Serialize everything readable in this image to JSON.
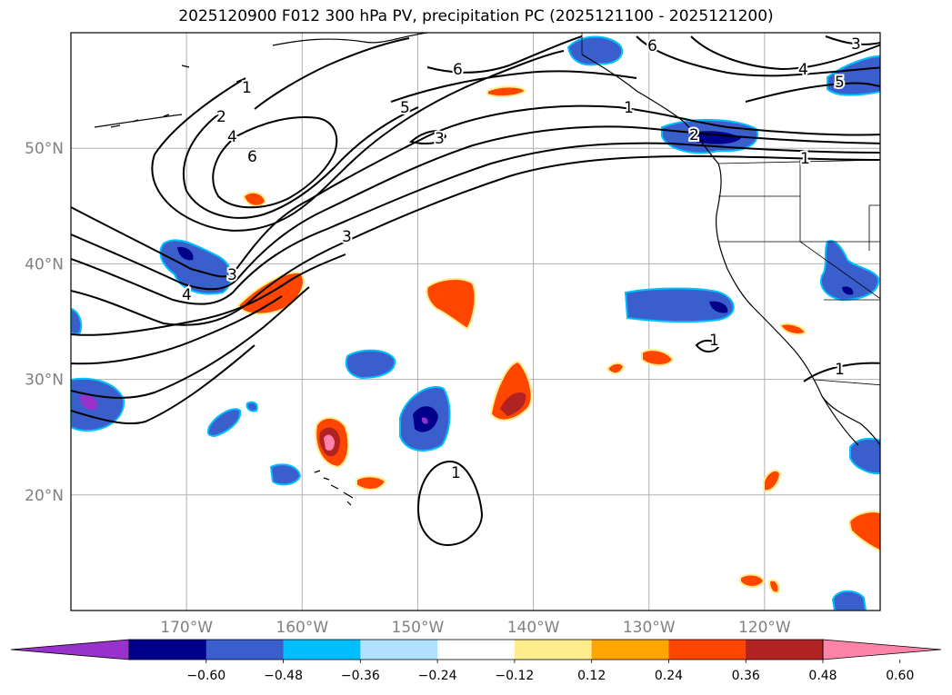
{
  "title": "2025120900 F012 300 hPa PV, precipitation PC (2025121100 - 2025121200)",
  "map": {
    "lon_range": [
      -180,
      -110
    ],
    "lat_range": [
      10,
      60
    ],
    "lat_ticks": [
      {
        "value": 50,
        "label": "50°N"
      },
      {
        "value": 40,
        "label": "40°N"
      },
      {
        "value": 30,
        "label": "30°N"
      },
      {
        "value": 20,
        "label": "20°N"
      }
    ],
    "lon_ticks": [
      {
        "value": -170,
        "label": "170°W"
      },
      {
        "value": -160,
        "label": "160°W"
      },
      {
        "value": -150,
        "label": "150°W"
      },
      {
        "value": -140,
        "label": "140°W"
      },
      {
        "value": -130,
        "label": "130°W"
      },
      {
        "value": -120,
        "label": "120°W"
      }
    ],
    "grid": true,
    "contour_labels": [
      "1",
      "2",
      "3",
      "4",
      "5",
      "6"
    ]
  },
  "colorbar": {
    "colors": [
      "#9932cc",
      "#00008b",
      "#3a5fcd",
      "#00bfff",
      "#b0e2ff",
      "#ffffff",
      "#ffec8b",
      "#ffa500",
      "#ff4500",
      "#b22222",
      "#ff83a8"
    ],
    "tick_labels": [
      "−0.60",
      "−0.48",
      "−0.36",
      "−0.24",
      "−0.12",
      "0.12",
      "0.24",
      "0.36",
      "0.48",
      "0.60"
    ],
    "extend": "both"
  },
  "palette": {
    "neg_strong": "#00008b",
    "neg_mid": "#3a5fcd",
    "neg_weak": "#00bfff",
    "neg_extreme": "#9932cc",
    "pos_weak": "#ffec8b",
    "pos_mid": "#ff4500",
    "pos_strong": "#b22222",
    "pos_extreme": "#ff83a8",
    "contour": "#000000",
    "grid": "#b0b0b0"
  }
}
